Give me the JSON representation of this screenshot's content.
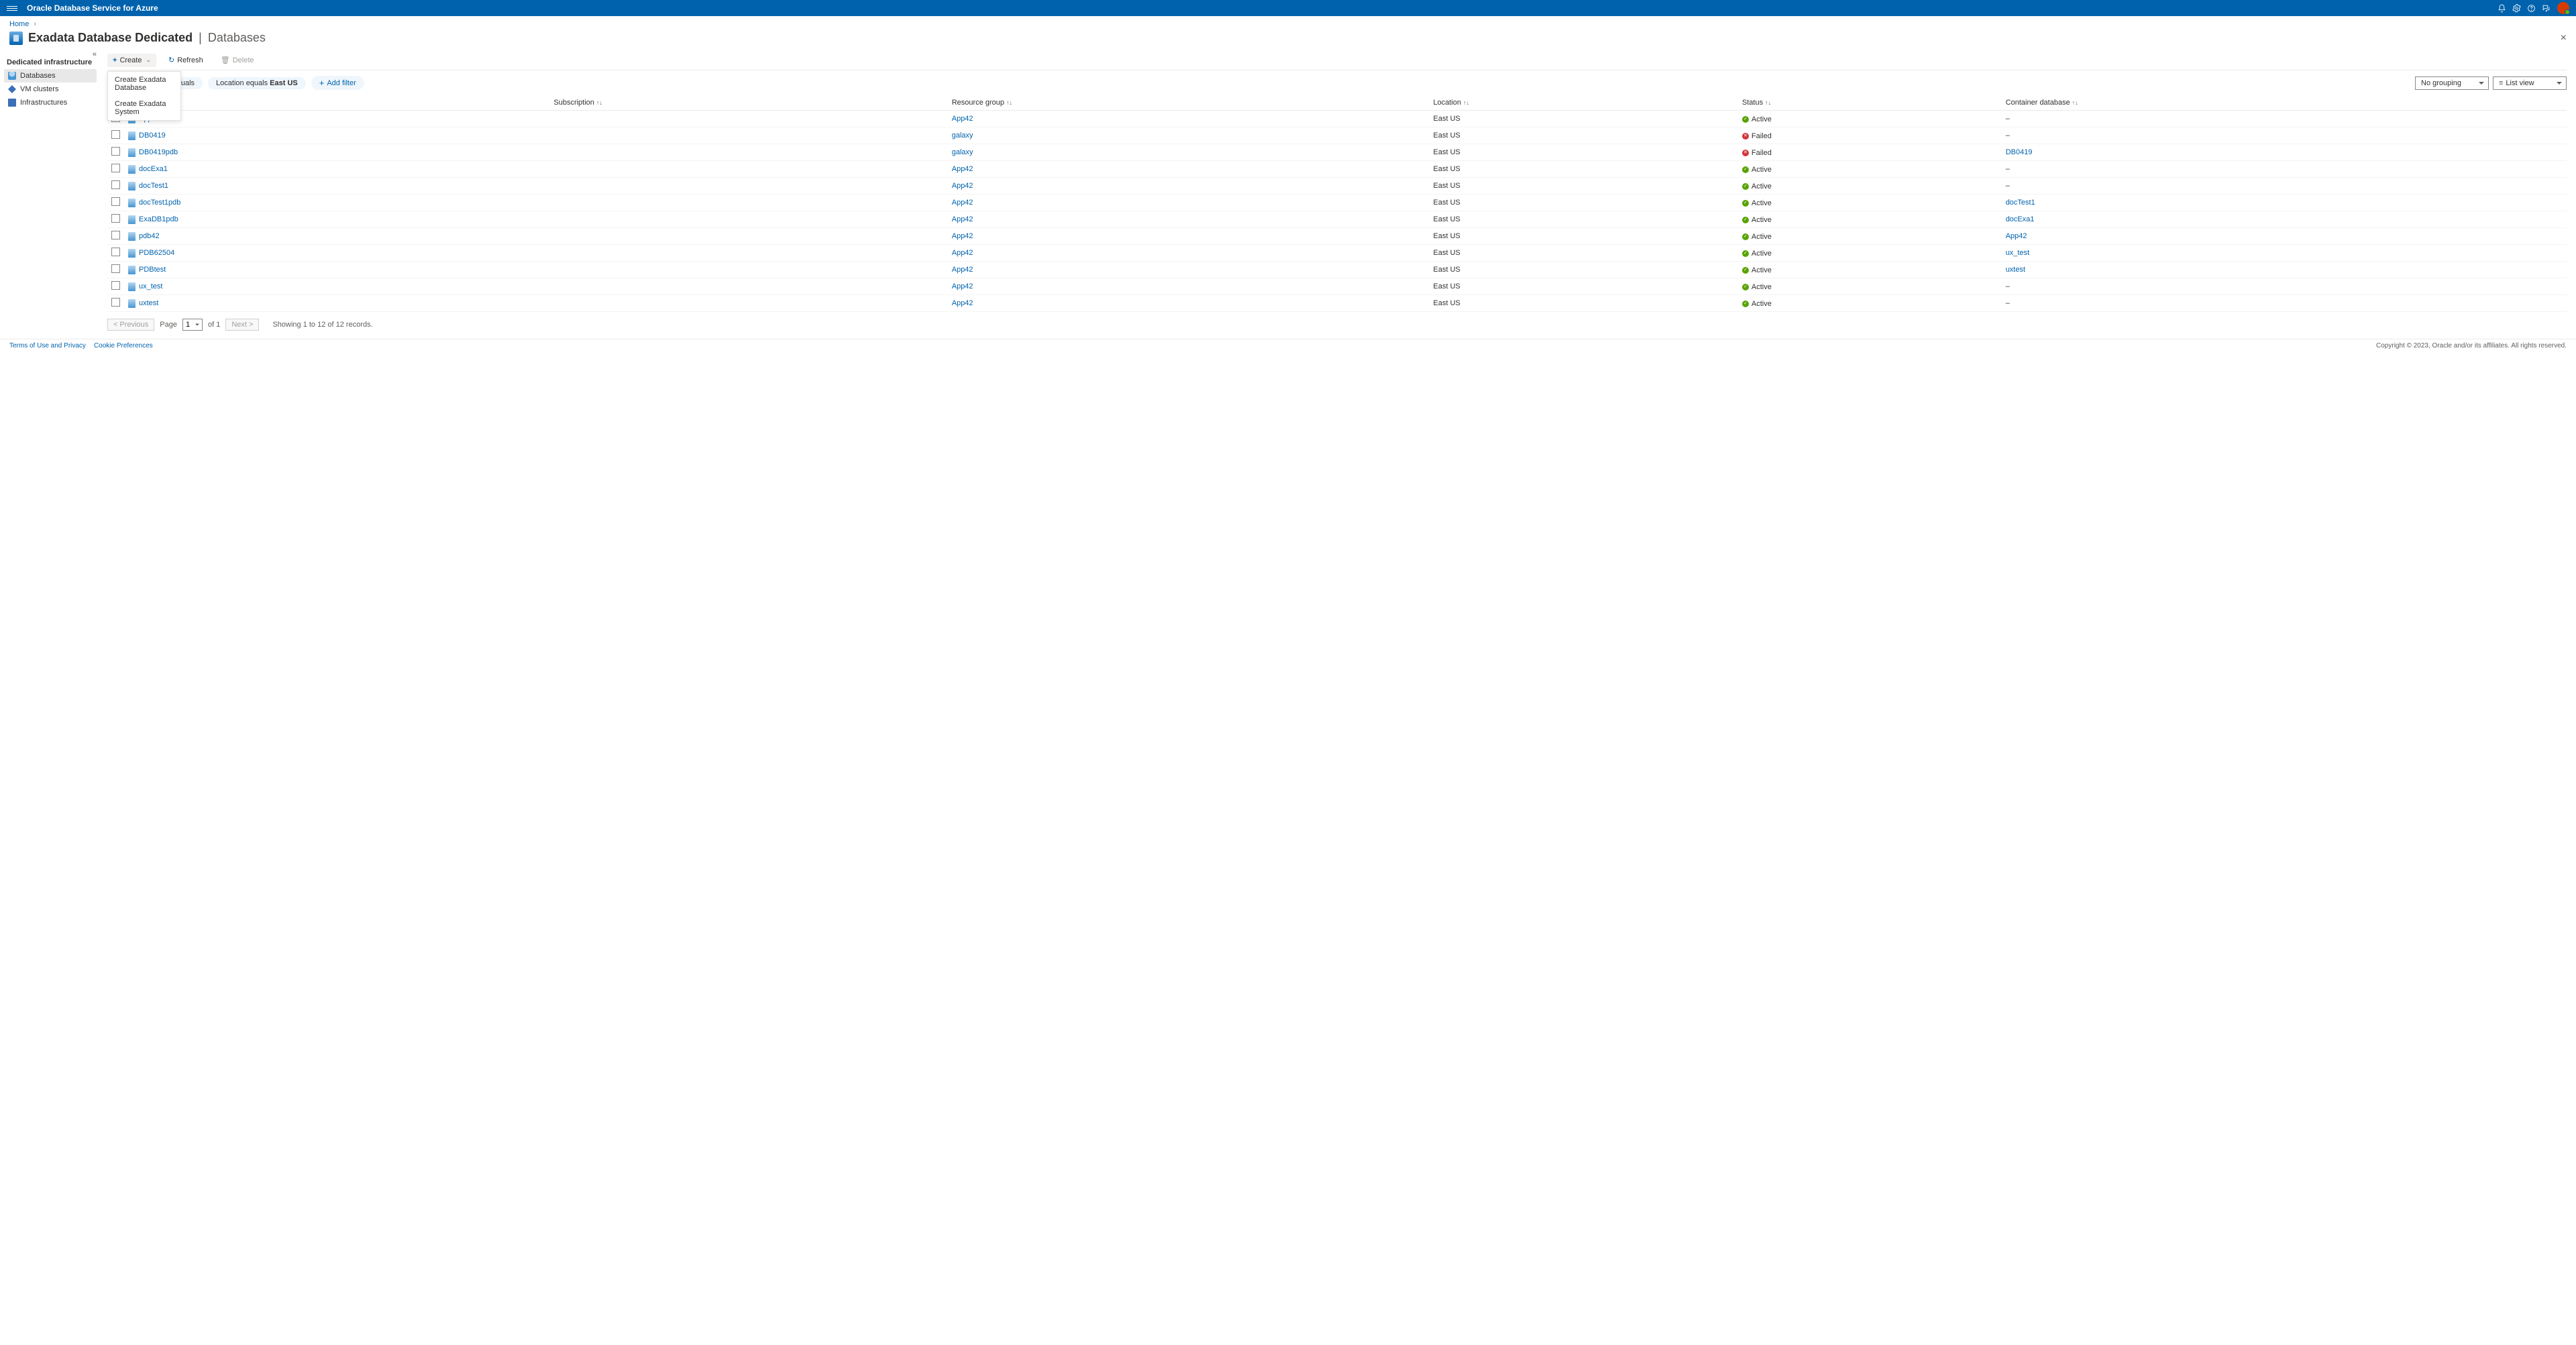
{
  "header": {
    "brand": "Oracle Database Service for Azure"
  },
  "breadcrumb": {
    "home": "Home"
  },
  "pageTitle": {
    "main": "Exadata Database Dedicated",
    "sub": "Databases"
  },
  "sidebar": {
    "sectionTitle": "Dedicated infrastructure",
    "items": [
      {
        "label": "Databases",
        "active": true
      },
      {
        "label": "VM clusters",
        "active": false
      },
      {
        "label": "Infrastructures",
        "active": false
      }
    ]
  },
  "toolbar": {
    "create": "Create",
    "refresh": "Refresh",
    "delete": "Delete",
    "dropdown": [
      "Create Exadata Database",
      "Create Exadata System"
    ]
  },
  "filters": {
    "subscription": {
      "label": "Subscription",
      "op": "equals"
    },
    "location": {
      "label": "Location",
      "op": "equals",
      "value": "East US"
    },
    "addFilter": "Add filter"
  },
  "viewControls": {
    "grouping": "No grouping",
    "view": "List view"
  },
  "columns": {
    "name": "Name",
    "subscription": "Subscription",
    "resourceGroup": "Resource group",
    "location": "Location",
    "status": "Status",
    "container": "Container database"
  },
  "rows": [
    {
      "name": "App42",
      "subscription": "",
      "rg": "App42",
      "loc": "East US",
      "status": "Active",
      "ok": true,
      "container": "–"
    },
    {
      "name": "DB0419",
      "subscription": "",
      "rg": "galaxy",
      "loc": "East US",
      "status": "Failed",
      "ok": false,
      "container": "–"
    },
    {
      "name": "DB0419pdb",
      "subscription": "",
      "rg": "galaxy",
      "loc": "East US",
      "status": "Failed",
      "ok": false,
      "container": "DB0419"
    },
    {
      "name": "docExa1",
      "subscription": "",
      "rg": "App42",
      "loc": "East US",
      "status": "Active",
      "ok": true,
      "container": "–"
    },
    {
      "name": "docTest1",
      "subscription": "",
      "rg": "App42",
      "loc": "East US",
      "status": "Active",
      "ok": true,
      "container": "–"
    },
    {
      "name": "docTest1pdb",
      "subscription": "",
      "rg": "App42",
      "loc": "East US",
      "status": "Active",
      "ok": true,
      "container": "docTest1"
    },
    {
      "name": "ExaDB1pdb",
      "subscription": "",
      "rg": "App42",
      "loc": "East US",
      "status": "Active",
      "ok": true,
      "container": "docExa1"
    },
    {
      "name": "pdb42",
      "subscription": "",
      "rg": "App42",
      "loc": "East US",
      "status": "Active",
      "ok": true,
      "container": "App42"
    },
    {
      "name": "PDB62504",
      "subscription": "",
      "rg": "App42",
      "loc": "East US",
      "status": "Active",
      "ok": true,
      "container": "ux_test"
    },
    {
      "name": "PDBtest",
      "subscription": "",
      "rg": "App42",
      "loc": "East US",
      "status": "Active",
      "ok": true,
      "container": "uxtest"
    },
    {
      "name": "ux_test",
      "subscription": "",
      "rg": "App42",
      "loc": "East US",
      "status": "Active",
      "ok": true,
      "container": "–"
    },
    {
      "name": "uxtest",
      "subscription": "",
      "rg": "App42",
      "loc": "East US",
      "status": "Active",
      "ok": true,
      "container": "–"
    }
  ],
  "pager": {
    "prev": "< Previous",
    "pageLabel": "Page",
    "pageValue": "1",
    "ofLabel": "of 1",
    "next": "Next >",
    "summary": "Showing 1 to 12 of 12 records."
  },
  "footer": {
    "terms": "Terms of Use and Privacy",
    "cookies": "Cookie Preferences",
    "copyright": "Copyright © 2023, Oracle and/or its affiliates. All rights reserved."
  }
}
